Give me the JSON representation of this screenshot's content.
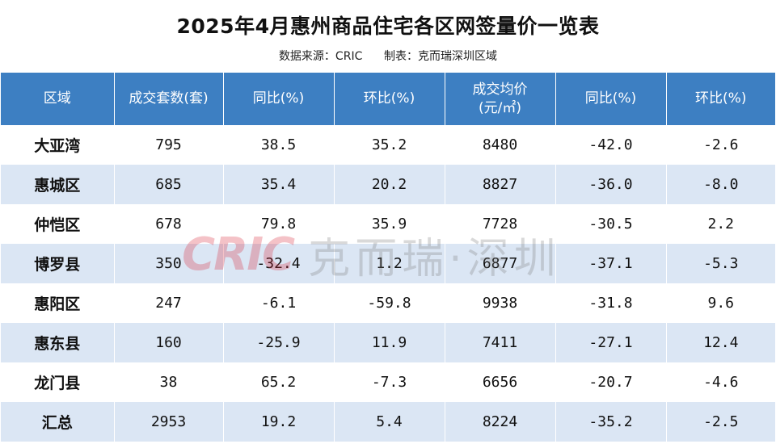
{
  "title": "2025年4月惠州商品住宅各区网签量价一览表",
  "subtitle": "数据来源：CRIC      制表：克而瑞深圳区域",
  "headers": [
    "区域",
    "成交套数(套)",
    "同比(%)",
    "环比(%)",
    "成交均价\n(元/㎡)",
    "同比(%)",
    "环比(%)"
  ],
  "rows": [
    {
      "region": "大亚湾",
      "count": "795",
      "count_yoy": "38.5",
      "count_mom": "35.2",
      "price": "8480",
      "price_yoy": "-42.0",
      "price_mom": "-2.6"
    },
    {
      "region": "惠城区",
      "count": "685",
      "count_yoy": "35.4",
      "count_mom": "20.2",
      "price": "8827",
      "price_yoy": "-36.0",
      "price_mom": "-8.0"
    },
    {
      "region": "仲恺区",
      "count": "678",
      "count_yoy": "79.8",
      "count_mom": "35.9",
      "price": "7728",
      "price_yoy": "-30.5",
      "price_mom": "2.2"
    },
    {
      "region": "博罗县",
      "count": "350",
      "count_yoy": "-32.4",
      "count_mom": "1.2",
      "price": "6877",
      "price_yoy": "-37.1",
      "price_mom": "-5.3"
    },
    {
      "region": "惠阳区",
      "count": "247",
      "count_yoy": "-6.1",
      "count_mom": "-59.8",
      "price": "9938",
      "price_yoy": "-31.8",
      "price_mom": "9.6"
    },
    {
      "region": "惠东县",
      "count": "160",
      "count_yoy": "-25.9",
      "count_mom": "11.9",
      "price": "7411",
      "price_yoy": "-27.1",
      "price_mom": "12.4"
    },
    {
      "region": "龙门县",
      "count": "38",
      "count_yoy": "65.2",
      "count_mom": "-7.3",
      "price": "6656",
      "price_yoy": "-20.7",
      "price_mom": "-4.6"
    },
    {
      "region": "汇总",
      "count": "2953",
      "count_yoy": "19.2",
      "count_mom": "5.4",
      "price": "8224",
      "price_yoy": "-35.2",
      "price_mom": "-2.5"
    }
  ],
  "watermark": {
    "logo": "CRIC",
    "text": "克而瑞·深圳",
    "logo_color": "#d9283a"
  },
  "colors": {
    "header_bg": "#3d7fc2",
    "stripe": "#dbe6f4"
  }
}
